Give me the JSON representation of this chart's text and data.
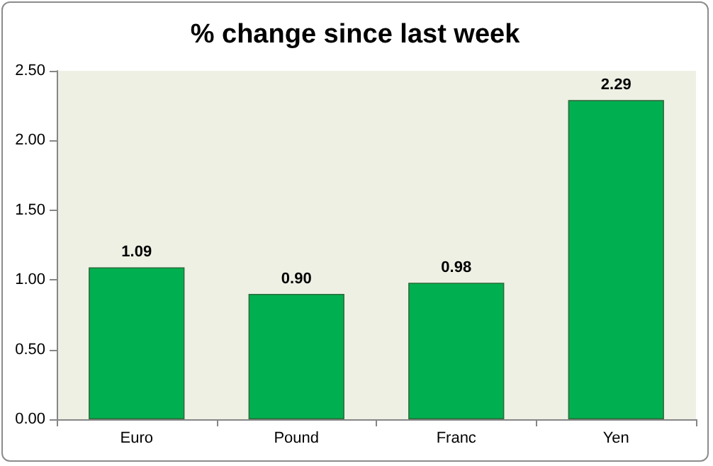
{
  "chart_data": {
    "type": "bar",
    "title": "% change since last week",
    "categories": [
      "Euro",
      "Pound",
      "Franc",
      "Yen"
    ],
    "values": [
      1.09,
      0.9,
      0.98,
      2.29
    ],
    "value_labels": [
      "1.09",
      "0.90",
      "0.98",
      "2.29"
    ],
    "color": "#00b050",
    "ylim": [
      0,
      2.5
    ],
    "yticks": [
      {
        "value": 0,
        "label": "0.00"
      },
      {
        "value": 0.5,
        "label": "0.50"
      },
      {
        "value": 1,
        "label": "1.00"
      },
      {
        "value": 1.5,
        "label": "1.50"
      },
      {
        "value": 2,
        "label": "2.00"
      },
      {
        "value": 2.5,
        "label": "2.50"
      }
    ],
    "grid": false
  }
}
